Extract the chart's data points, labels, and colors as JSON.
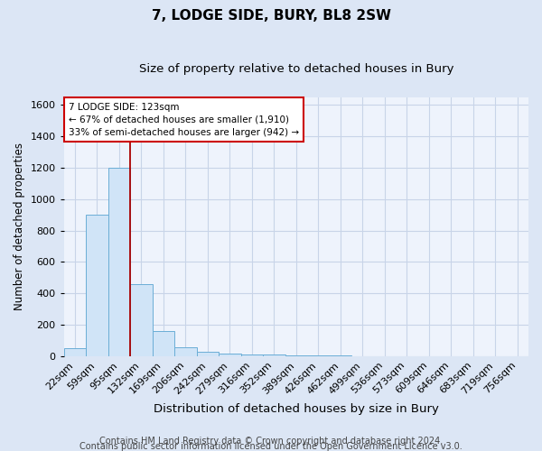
{
  "title": "7, LODGE SIDE, BURY, BL8 2SW",
  "subtitle": "Size of property relative to detached houses in Bury",
  "xlabel": "Distribution of detached houses by size in Bury",
  "ylabel": "Number of detached properties",
  "footnote1": "Contains HM Land Registry data © Crown copyright and database right 2024.",
  "footnote2": "Contains public sector information licensed under the Open Government Licence v3.0.",
  "categories": [
    "22sqm",
    "59sqm",
    "95sqm",
    "132sqm",
    "169sqm",
    "206sqm",
    "242sqm",
    "279sqm",
    "316sqm",
    "352sqm",
    "389sqm",
    "426sqm",
    "462sqm",
    "499sqm",
    "536sqm",
    "573sqm",
    "609sqm",
    "646sqm",
    "683sqm",
    "719sqm",
    "756sqm"
  ],
  "values": [
    50,
    900,
    1200,
    460,
    160,
    55,
    25,
    18,
    12,
    8,
    5,
    3,
    2,
    1,
    1,
    1,
    1,
    1,
    0,
    0,
    0
  ],
  "bar_color": "#d0e4f7",
  "bar_edge_color": "#6baed6",
  "red_line_x": 2.5,
  "annotation_text": "7 LODGE SIDE: 123sqm\n← 67% of detached houses are smaller (1,910)\n33% of semi-detached houses are larger (942) →",
  "annotation_box_color": "white",
  "annotation_box_edge_color": "#cc0000",
  "red_line_color": "#aa0000",
  "ylim": [
    0,
    1650
  ],
  "yticks": [
    0,
    200,
    400,
    600,
    800,
    1000,
    1200,
    1400,
    1600
  ],
  "grid_color": "#c8d4e8",
  "background_color": "#dce6f5",
  "plot_bg_color": "#eef3fc",
  "title_fontsize": 11,
  "subtitle_fontsize": 9.5,
  "xlabel_fontsize": 9.5,
  "ylabel_fontsize": 8.5,
  "footnote_fontsize": 7,
  "tick_fontsize": 8,
  "annot_fontsize": 7.5
}
